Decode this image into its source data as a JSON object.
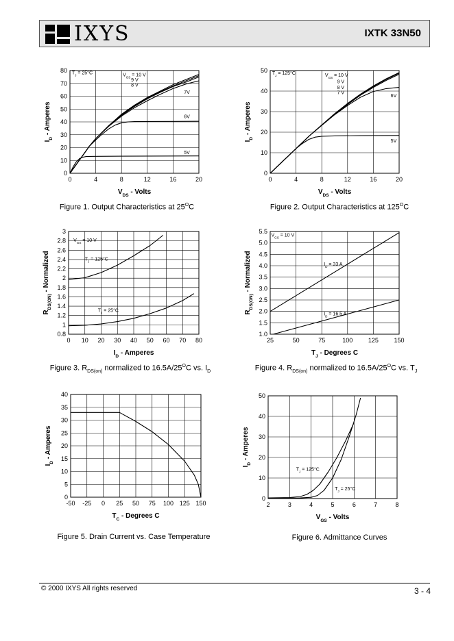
{
  "header": {
    "brand": "IXYS",
    "part": "IXTK 33N50"
  },
  "footer": {
    "copyright": "© 2000 IXYS All rights reserved",
    "page": "3 - 4"
  },
  "chart_data": [
    {
      "type": "line",
      "caption": "Figure 1. Output Characteristics at 25°C",
      "xlabel": "V_DS - Volts",
      "ylabel": "I_D - Amperes",
      "xlim": [
        0,
        20
      ],
      "ylim": [
        0,
        80
      ],
      "xticks": [
        0,
        4,
        8,
        12,
        16,
        20
      ],
      "yticks": [
        0,
        10,
        20,
        30,
        40,
        50,
        60,
        70,
        80
      ],
      "annotations": [
        "T_J = 25°C",
        "V_GS = 10 V",
        "9 V",
        "8 V",
        "7V",
        "6V",
        "5V"
      ],
      "series": [
        {
          "name": "10 V",
          "x": [
            0,
            1,
            2,
            3,
            4,
            6,
            8,
            10,
            12,
            14,
            16,
            18,
            20
          ],
          "y": [
            0,
            7,
            14,
            21,
            27,
            37,
            46,
            53,
            59,
            64,
            69,
            73,
            77
          ]
        },
        {
          "name": "9 V",
          "x": [
            0,
            1,
            2,
            3,
            4,
            6,
            8,
            10,
            12,
            14,
            16,
            18,
            20
          ],
          "y": [
            0,
            7,
            14,
            21,
            27,
            37,
            45.5,
            52.5,
            58.5,
            63.5,
            68,
            72,
            76
          ]
        },
        {
          "name": "8 V",
          "x": [
            0,
            1,
            2,
            3,
            4,
            6,
            8,
            10,
            12,
            14,
            16,
            18,
            20
          ],
          "y": [
            0,
            7,
            14,
            21,
            27,
            37,
            45,
            52,
            58,
            63,
            67.5,
            71,
            75
          ]
        },
        {
          "name": "7V",
          "x": [
            0,
            1,
            2,
            3,
            4,
            6,
            8,
            10,
            12,
            14,
            16,
            18,
            20
          ],
          "y": [
            0,
            7,
            14,
            21,
            27,
            36.5,
            44.5,
            51,
            56.5,
            61.5,
            66,
            69.5,
            72
          ]
        },
        {
          "name": "6V",
          "x": [
            0,
            1,
            2,
            3,
            4,
            5,
            6,
            7,
            8,
            9,
            10,
            12,
            16,
            20
          ],
          "y": [
            0,
            7,
            14,
            21,
            26,
            30.5,
            34.5,
            37.5,
            39.3,
            40,
            40.2,
            40.3,
            40.4,
            40.5
          ]
        },
        {
          "name": "5V",
          "x": [
            0,
            0.5,
            1,
            1.5,
            2,
            2.5,
            3,
            4,
            8,
            20
          ],
          "y": [
            0,
            5,
            9,
            11.5,
            12.5,
            13,
            13.1,
            13.2,
            13.3,
            13.5
          ]
        }
      ]
    },
    {
      "type": "line",
      "caption": "Figure 2. Output Characteristics at 125°C",
      "xlabel": "V_DS - Volts",
      "ylabel": "I_D - Amperes",
      "xlim": [
        0,
        20
      ],
      "ylim": [
        0,
        50
      ],
      "xticks": [
        0,
        4,
        8,
        12,
        16,
        20
      ],
      "yticks": [
        0,
        10,
        20,
        30,
        40,
        50
      ],
      "annotations": [
        "T_J = 125°C",
        "V_GS = 10 V",
        "9 V",
        "8 V",
        "7 V",
        "6V",
        "5V"
      ],
      "series": [
        {
          "name": "10 V",
          "x": [
            0,
            2,
            4,
            6,
            8,
            10,
            12,
            14,
            16,
            18,
            20
          ],
          "y": [
            0,
            6,
            12,
            18,
            23.5,
            29,
            34,
            38.5,
            42.5,
            46,
            49
          ]
        },
        {
          "name": "9 V",
          "x": [
            0,
            2,
            4,
            6,
            8,
            10,
            12,
            14,
            16,
            18,
            20
          ],
          "y": [
            0,
            6,
            12,
            18,
            23.5,
            29,
            33.8,
            38.3,
            42.2,
            45.7,
            48.7
          ]
        },
        {
          "name": "8 V",
          "x": [
            0,
            2,
            4,
            6,
            8,
            10,
            12,
            14,
            16,
            18,
            20
          ],
          "y": [
            0,
            6,
            12,
            18,
            23.5,
            28.8,
            33.5,
            38,
            41.8,
            45.2,
            48.2
          ]
        },
        {
          "name": "7 V",
          "x": [
            0,
            2,
            4,
            6,
            8,
            10,
            12,
            14,
            16,
            18,
            20
          ],
          "y": [
            0,
            6,
            12,
            18,
            23.3,
            28.5,
            33,
            37,
            39.8,
            41.2,
            41.8
          ]
        },
        {
          "name": "6V",
          "x": [
            0,
            1,
            2,
            3,
            4,
            5,
            6,
            7,
            8,
            10,
            14,
            20
          ],
          "y": [
            0,
            3,
            6,
            9,
            12,
            14.5,
            16.5,
            17.6,
            18,
            18.2,
            18.3,
            18.4
          ]
        },
        {
          "name": "5V",
          "x": [
            0,
            20
          ],
          "y": [
            0,
            0
          ]
        }
      ]
    },
    {
      "type": "line",
      "caption": "Figure 3. R_DS(on) normalized to 16.5A/25°C vs. I_D",
      "xlabel": "I_D - Amperes",
      "ylabel": "R_DS(ON) - Normalized",
      "xlim": [
        0,
        80
      ],
      "ylim": [
        0.8,
        3.0
      ],
      "xticks": [
        0,
        10,
        20,
        30,
        40,
        50,
        60,
        70,
        80
      ],
      "yticks": [
        0.8,
        1.0,
        1.2,
        1.4,
        1.6,
        1.8,
        2.0,
        2.2,
        2.4,
        2.6,
        2.8,
        3.0
      ],
      "annotations": [
        "V_GS = 10 V",
        "T_J = 125°C",
        "T_J = 25°C"
      ],
      "series": [
        {
          "name": "T_J = 125°C",
          "x": [
            0,
            10,
            20,
            30,
            40,
            50,
            58
          ],
          "y": [
            1.97,
            2.01,
            2.12,
            2.28,
            2.48,
            2.7,
            2.92
          ]
        },
        {
          "name": "T_J = 25°C",
          "x": [
            0,
            10,
            20,
            30,
            40,
            50,
            60,
            70,
            77
          ],
          "y": [
            0.98,
            0.99,
            1.02,
            1.07,
            1.14,
            1.24,
            1.36,
            1.52,
            1.67
          ]
        }
      ]
    },
    {
      "type": "line",
      "caption": "Figure 4. R_DS(on) normalized to 16.5A/25°C vs. T_J",
      "xlabel": "T_J - Degrees C",
      "ylabel": "R_DS(ON) - Normalized",
      "xlim": [
        25,
        150
      ],
      "ylim": [
        1.0,
        5.5
      ],
      "xticks": [
        25,
        50,
        75,
        100,
        125,
        150
      ],
      "yticks": [
        1.0,
        1.5,
        2.0,
        2.5,
        3.0,
        3.5,
        4.0,
        4.5,
        5.0,
        5.5
      ],
      "annotations": [
        "V_GS = 10 V",
        "I_D = 33 A",
        "I_D = 16.5 A"
      ],
      "series": [
        {
          "name": "I_D = 33 A",
          "x": [
            25,
            150
          ],
          "y": [
            2.0,
            5.45
          ]
        },
        {
          "name": "I_D = 16.5 A",
          "x": [
            28,
            150
          ],
          "y": [
            1.0,
            2.5
          ]
        }
      ]
    },
    {
      "type": "line",
      "caption": "Figure 5. Drain Current vs. Case Temperature",
      "xlabel": "T_C - Degrees C",
      "ylabel": "I_D - Amperes",
      "xlim": [
        -50,
        150
      ],
      "ylim": [
        0,
        40
      ],
      "xticks": [
        -50,
        -25,
        0,
        25,
        50,
        75,
        100,
        125,
        150
      ],
      "yticks": [
        0,
        5,
        10,
        15,
        20,
        25,
        30,
        35,
        40
      ],
      "series": [
        {
          "name": "I_D",
          "x": [
            -50,
            25,
            50,
            75,
            100,
            125,
            140,
            146,
            150
          ],
          "y": [
            33,
            33,
            29.5,
            25.5,
            20.5,
            14,
            8.5,
            5,
            0
          ]
        }
      ]
    },
    {
      "type": "line",
      "caption": "Figure 6. Admittance Curves",
      "xlabel": "V_GS - Volts",
      "ylabel": "I_D - Amperes",
      "xlim": [
        2,
        8
      ],
      "ylim": [
        0,
        50
      ],
      "xticks": [
        2,
        3,
        4,
        5,
        6,
        7,
        8
      ],
      "yticks": [
        0,
        10,
        20,
        30,
        40,
        50
      ],
      "annotations": [
        "T_J = 125°C",
        "T_J = 25°C"
      ],
      "series": [
        {
          "name": "T_J = 125°C",
          "x": [
            2,
            3,
            3.5,
            3.8,
            4.1,
            4.4,
            4.8,
            5.2,
            5.6,
            6.0
          ],
          "y": [
            0.3,
            0.5,
            1,
            2,
            4,
            7,
            13,
            20,
            28,
            37
          ]
        },
        {
          "name": "T_J = 25°C",
          "x": [
            2,
            3.5,
            4,
            4.3,
            4.6,
            5.0,
            5.4,
            5.8,
            6.1,
            6.3
          ],
          "y": [
            0.2,
            0.3,
            0.6,
            1.5,
            4,
            10,
            19,
            31,
            41,
            49
          ]
        }
      ]
    }
  ]
}
